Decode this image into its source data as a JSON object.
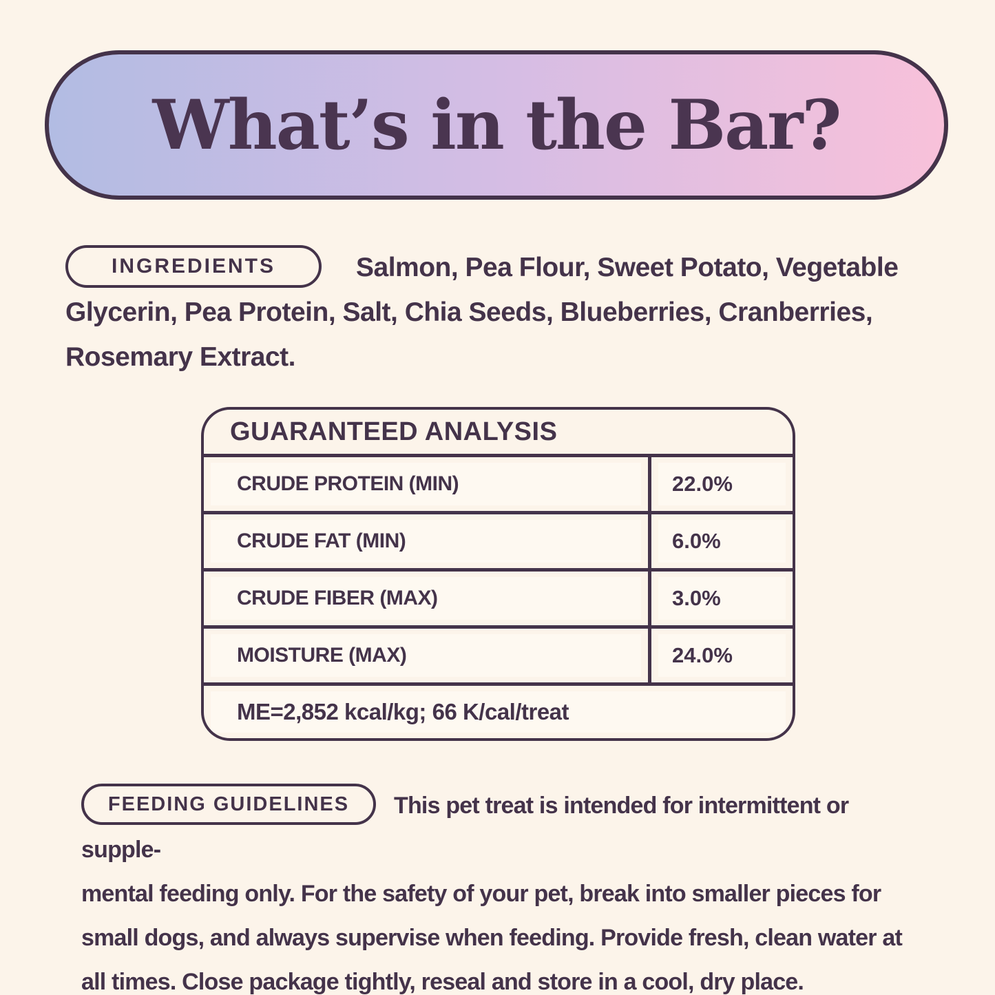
{
  "colors": {
    "background": "#fcf4ea",
    "ink": "#44334a",
    "title_ink": "#4a3550",
    "gradient_left": "#b2bce3",
    "gradient_mid": "#d6bde4",
    "gradient_right": "#f8c1da"
  },
  "header": {
    "title": "What’s in the Bar?"
  },
  "ingredients": {
    "label": "INGREDIENTS",
    "lines": [
      "Salmon, Pea Flour, Sweet Potato, Vegetable",
      "Glycerin, Pea Protein, Salt, Chia Seeds, Blueberries, Cranberries,",
      "Rosemary Extract."
    ]
  },
  "analysis": {
    "title": "GUARANTEED ANALYSIS",
    "rows": [
      {
        "label": "CRUDE PROTEIN (MIN)",
        "value": "22.0%"
      },
      {
        "label": "CRUDE FAT (MIN)",
        "value": "6.0%"
      },
      {
        "label": "CRUDE FIBER (MAX)",
        "value": "3.0%"
      },
      {
        "label": "MOISTURE (MAX)",
        "value": "24.0%"
      }
    ],
    "footnote": "ME=2,852 kcal/kg; 66 K/cal/treat"
  },
  "feeding": {
    "label": "FEEDING GUIDELINES",
    "lines": [
      "This pet treat is intended for intermittent or supple-",
      "mental feeding only. For the safety of your pet, break into smaller pieces for",
      "small dogs, and always supervise when feeding. Provide fresh, clean water at",
      "all times. Close package tightly, reseal and store in a cool, dry place."
    ]
  }
}
